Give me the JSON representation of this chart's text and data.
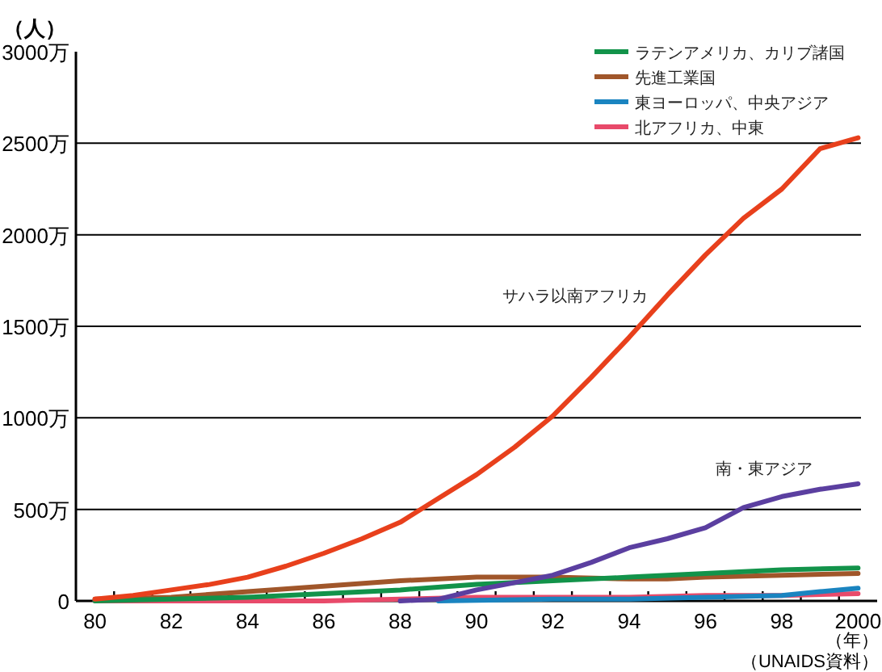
{
  "chart_data": {
    "type": "line",
    "ylabel": "（人）",
    "xlabel": "（年）",
    "annotations": [
      "（UNAIDS資料）"
    ],
    "xlim": [
      1979.5,
      2000.5
    ],
    "xticks": [
      {
        "value": 1980,
        "label": "80"
      },
      {
        "value": 1982,
        "label": "82"
      },
      {
        "value": 1984,
        "label": "84"
      },
      {
        "value": 1986,
        "label": "86"
      },
      {
        "value": 1988,
        "label": "88"
      },
      {
        "value": 1990,
        "label": "90"
      },
      {
        "value": 1992,
        "label": "92"
      },
      {
        "value": 1994,
        "label": "94"
      },
      {
        "value": 1996,
        "label": "96"
      },
      {
        "value": 1998,
        "label": "98"
      },
      {
        "value": 2000,
        "label": "2000"
      },
      {
        "value": 1980.5,
        "label": null
      },
      {
        "value": 1981.5,
        "label": null
      },
      {
        "value": 1982.5,
        "label": null
      },
      {
        "value": 1983.5,
        "label": null
      },
      {
        "value": 1984.5,
        "label": null
      },
      {
        "value": 1985.5,
        "label": null
      },
      {
        "value": 1986.5,
        "label": null
      },
      {
        "value": 1987.5,
        "label": null
      },
      {
        "value": 1988.5,
        "label": null
      },
      {
        "value": 1989.5,
        "label": null
      },
      {
        "value": 1990.5,
        "label": null
      },
      {
        "value": 1991.5,
        "label": null
      },
      {
        "value": 1992.5,
        "label": null
      },
      {
        "value": 1993.5,
        "label": null
      },
      {
        "value": 1994.5,
        "label": null
      },
      {
        "value": 1995.5,
        "label": null
      },
      {
        "value": 1996.5,
        "label": null
      },
      {
        "value": 1997.5,
        "label": null
      },
      {
        "value": 1998.5,
        "label": null
      },
      {
        "value": 1999.5,
        "label": null
      }
    ],
    "ylim": [
      0,
      3000
    ],
    "yticks": [
      0,
      {
        "value": 500,
        "label": "500万"
      },
      {
        "value": 1000,
        "label": "1000万"
      },
      {
        "value": 1500,
        "label": "1500万"
      },
      {
        "value": 2000,
        "label": "2000万"
      },
      {
        "value": 2500,
        "label": "2500万"
      },
      {
        "value": 3000,
        "label": "3000万"
      }
    ],
    "grid": "y",
    "legend": "top right",
    "marker": "none",
    "line_style": "solid",
    "series": [
      {
        "name": "サハラ以南アフリカ",
        "color": "#e8401c",
        "x": [
          1980,
          1981,
          1982,
          1983,
          1984,
          1985,
          1986,
          1987,
          1988,
          1989,
          1990,
          1991,
          1992,
          1993,
          1994,
          1995,
          1996,
          1997,
          1998,
          1999,
          2000
        ],
        "values": [
          10,
          30,
          60,
          90,
          130,
          190,
          260,
          340,
          430,
          560,
          690,
          840,
          1010,
          1220,
          1440,
          1670,
          1890,
          2090,
          2250,
          2470,
          2530
        ]
      },
      {
        "name": "南・東アジア",
        "color": "#5b3fa0",
        "x": [
          1988,
          1989,
          1990,
          1991,
          1992,
          1993,
          1994,
          1995,
          1996,
          1997,
          1998,
          1999,
          2000
        ],
        "values": [
          0,
          10,
          60,
          100,
          140,
          210,
          290,
          340,
          400,
          510,
          570,
          610,
          640
        ]
      },
      {
        "name": "ラテンアメリカ、カリブ諸国",
        "color": "#12934a",
        "x": [
          1980,
          1982,
          1984,
          1986,
          1988,
          1990,
          1992,
          1994,
          1996,
          1998,
          2000
        ],
        "values": [
          0,
          10,
          20,
          40,
          60,
          90,
          110,
          130,
          150,
          170,
          180
        ]
      },
      {
        "name": "先進工業国",
        "color": "#a0562a",
        "x": [
          1980,
          1982,
          1984,
          1986,
          1988,
          1990,
          1992,
          1994,
          1995,
          1996,
          1998,
          2000
        ],
        "values": [
          10,
          20,
          50,
          80,
          110,
          130,
          130,
          120,
          120,
          130,
          140,
          150
        ]
      },
      {
        "name": "東ヨーロッパ、中央アジア",
        "color": "#1a84c0",
        "x": [
          1989,
          1992,
          1994,
          1996,
          1998,
          1999,
          2000
        ],
        "values": [
          0,
          10,
          10,
          20,
          30,
          50,
          70
        ]
      },
      {
        "name": "北アフリカ、中東",
        "color": "#e84a6a",
        "x": [
          1980,
          1986,
          1988,
          1990,
          1994,
          1996,
          1998,
          2000
        ],
        "values": [
          0,
          0,
          10,
          20,
          20,
          30,
          30,
          40
        ]
      }
    ]
  }
}
